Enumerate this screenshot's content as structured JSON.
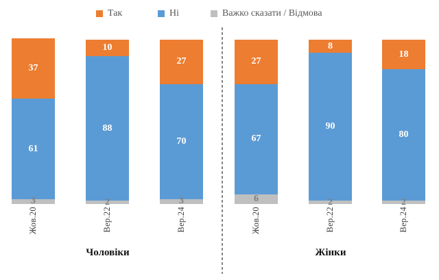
{
  "chart_data": {
    "type": "bar",
    "stacked": true,
    "orientation": "vertical",
    "title": "",
    "xlabel": "",
    "ylabel": "",
    "ylim": [
      0,
      100
    ],
    "grid": false,
    "legend_position": "top",
    "legend": [
      {
        "label": "Так",
        "color": "#ED7D31"
      },
      {
        "label": "Ні",
        "color": "#5B9BD5"
      },
      {
        "label": "Важко сказати / Відмова",
        "color": "#BFBFBF"
      }
    ],
    "value_label_colors": [
      "#FFFFFF",
      "#FFFFFF",
      "#7F7F7F"
    ],
    "groups": [
      {
        "label": "Чоловіки",
        "categories": [
          "Жов.20",
          "Вер.22",
          "Вер.24"
        ],
        "series": [
          {
            "name": "Так",
            "values": [
              37,
              10,
              27
            ]
          },
          {
            "name": "Ні",
            "values": [
              61,
              88,
              70
            ]
          },
          {
            "name": "Важко сказати / Відмова",
            "values": [
              3,
              2,
              3
            ]
          }
        ]
      },
      {
        "label": "Жінки",
        "categories": [
          "Жов.20",
          "Вер.22",
          "Вер.24"
        ],
        "series": [
          {
            "name": "Так",
            "values": [
              27,
              8,
              18
            ]
          },
          {
            "name": "Ні",
            "values": [
              67,
              90,
              80
            ]
          },
          {
            "name": "Важко сказати / Відмова",
            "values": [
              6,
              2,
              2
            ]
          }
        ]
      }
    ],
    "divider": {
      "style": "dashed",
      "color": "#858585"
    }
  }
}
